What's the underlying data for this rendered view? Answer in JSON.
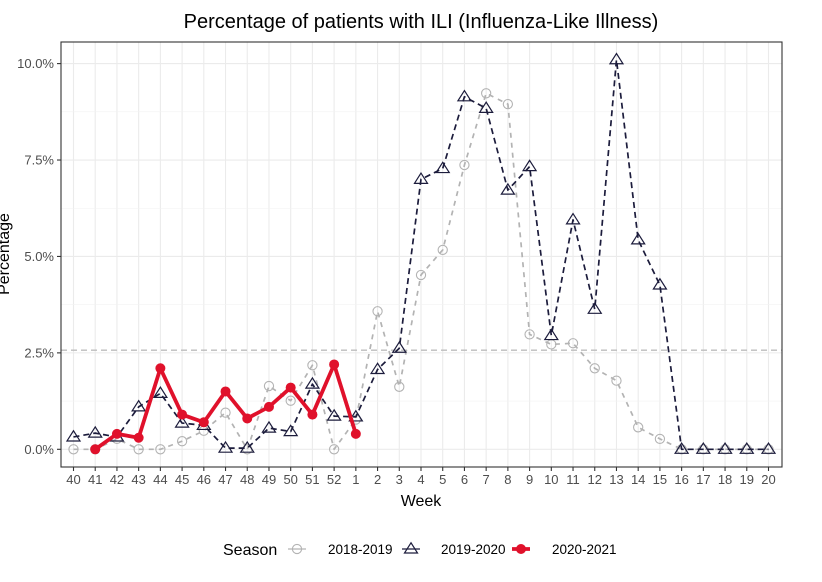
{
  "chart_data": {
    "type": "line",
    "title": "Percentage of patients with ILI (Influenza-Like Illness)",
    "xlabel": "Week",
    "ylabel": "Percentage",
    "categories": [
      "40",
      "41",
      "42",
      "43",
      "44",
      "45",
      "46",
      "47",
      "48",
      "49",
      "50",
      "51",
      "52",
      "1",
      "2",
      "3",
      "4",
      "5",
      "6",
      "7",
      "8",
      "9",
      "10",
      "11",
      "12",
      "13",
      "14",
      "15",
      "16",
      "17",
      "18",
      "19",
      "20"
    ],
    "ylim": [
      -0.4,
      10.6
    ],
    "yticks": [
      0,
      2.5,
      5,
      7.5,
      10
    ],
    "ytick_labels": [
      "0.0%",
      "2.5%",
      "5.0%",
      "7.5%",
      "10.0%"
    ],
    "grid": true,
    "reference_line": {
      "value": 2.57,
      "style": "dashed",
      "color": "#bdbdbd"
    },
    "legend": {
      "title": "Season",
      "position": "bottom"
    },
    "series": [
      {
        "name": "2018-2019",
        "color": "#b3b3b3",
        "line_style": "dashed",
        "marker": "open-circle",
        "values": [
          0.0,
          0.0,
          0.27,
          0.0,
          0.0,
          0.21,
          0.48,
          0.95,
          0.0,
          1.64,
          1.26,
          2.18,
          0.0,
          0.77,
          3.58,
          1.62,
          4.52,
          5.17,
          7.37,
          9.23,
          8.95,
          2.98,
          2.72,
          2.75,
          2.1,
          1.78,
          0.57,
          0.27,
          0.0,
          0.0,
          0.0,
          0.0,
          0.0
        ]
      },
      {
        "name": "2019-2020",
        "color": "#1c1c3c",
        "line_style": "dashed",
        "marker": "open-triangle",
        "values": [
          0.32,
          0.42,
          0.32,
          1.1,
          1.45,
          0.68,
          0.62,
          0.03,
          0.03,
          0.55,
          0.46,
          1.69,
          0.86,
          0.84,
          2.07,
          2.62,
          7.0,
          7.28,
          9.14,
          8.84,
          6.72,
          7.33,
          2.95,
          5.95,
          3.63,
          10.1,
          5.43,
          4.26,
          0.0,
          0.0,
          0.0,
          0.0,
          0.0
        ]
      },
      {
        "name": "2020-2021",
        "color": "#e0112b",
        "line_style": "solid",
        "marker": "filled-circle",
        "values": [
          null,
          0.0,
          0.4,
          0.3,
          2.1,
          0.9,
          0.7,
          1.5,
          0.8,
          1.1,
          1.6,
          0.9,
          2.2,
          0.4,
          null,
          null,
          null,
          null,
          null,
          null,
          null,
          null,
          null,
          null,
          null,
          null,
          null,
          null,
          null,
          null,
          null,
          null,
          null
        ]
      }
    ]
  }
}
